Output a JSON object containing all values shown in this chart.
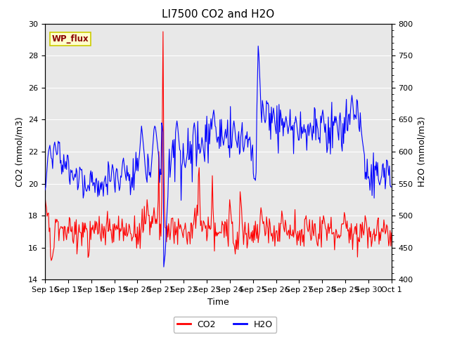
{
  "title": "LI7500 CO2 and H2O",
  "xlabel": "Time",
  "ylabel_left": "CO2 (mmol/m3)",
  "ylabel_right": "H2O (mmol/m3)",
  "ylim_left": [
    14,
    30
  ],
  "ylim_right": [
    400,
    800
  ],
  "xtick_labels": [
    "Sep 16",
    "Sep 17",
    "Sep 18",
    "Sep 19",
    "Sep 20",
    "Sep 21",
    "Sep 22",
    "Sep 23",
    "Sep 24",
    "Sep 25",
    "Sep 26",
    "Sep 27",
    "Sep 28",
    "Sep 29",
    "Sep 30",
    "Oct 1"
  ],
  "legend_co2_label": "CO2",
  "legend_h2o_label": "H2O",
  "co2_color": "#FF0000",
  "h2o_color": "#0000FF",
  "annotation_text": "WP_flux",
  "annotation_color": "#8B0000",
  "annotation_bg": "#FFFFCC",
  "annotation_edge": "#CCCC00",
  "bg_color": "#E8E8E8",
  "title_fontsize": 11,
  "axis_label_fontsize": 9,
  "tick_fontsize": 8,
  "legend_fontsize": 9
}
